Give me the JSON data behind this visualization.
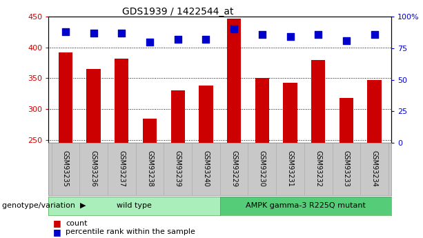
{
  "title": "GDS1939 / 1422544_at",
  "samples": [
    "GSM93235",
    "GSM93236",
    "GSM93237",
    "GSM93238",
    "GSM93239",
    "GSM93240",
    "GSM93229",
    "GSM93230",
    "GSM93231",
    "GSM93232",
    "GSM93233",
    "GSM93234"
  ],
  "counts": [
    392,
    365,
    382,
    284,
    330,
    338,
    447,
    350,
    342,
    380,
    318,
    347
  ],
  "percentiles": [
    88,
    87,
    87,
    80,
    82,
    82,
    90,
    86,
    84,
    86,
    81,
    86
  ],
  "ylim_left": [
    245,
    450
  ],
  "ylim_right": [
    0,
    100
  ],
  "yticks_left": [
    250,
    300,
    350,
    400,
    450
  ],
  "yticks_right": [
    0,
    25,
    50,
    75,
    100
  ],
  "bar_color": "#cc0000",
  "dot_color": "#0000cc",
  "grid_color": "#000000",
  "plot_bg_color": "#ffffff",
  "label_band_color": "#c8c8c8",
  "wild_type_color": "#aaeebb",
  "mutant_color": "#55cc77",
  "wild_type_label": "wild type",
  "mutant_label": "AMPK gamma-3 R225Q mutant",
  "xlabel_label": "genotype/variation",
  "legend_count": "count",
  "legend_percentile": "percentile rank within the sample",
  "bar_width": 0.5,
  "dot_size": 55,
  "n_wild": 6,
  "n_mutant": 6
}
